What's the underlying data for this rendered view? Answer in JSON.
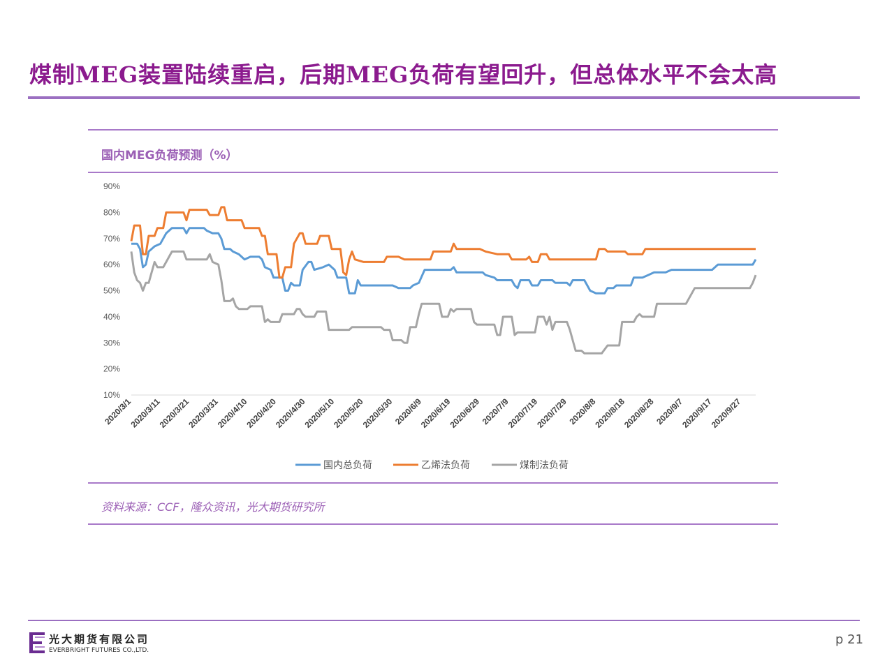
{
  "slide": {
    "title": "煤制MEG装置陆续重启，后期MEG负荷有望回升，但总体水平不会太高",
    "chart_title": "国内MEG负荷预测（%）",
    "source": "资料来源：CCF，隆众资讯，光大期货研究所",
    "page_number": "p 21",
    "logo_cn": "光大期货有限公司",
    "logo_en": "EVERBRIGHT FUTURES CO.,LTD."
  },
  "colors": {
    "title": "#8b1a8e",
    "rule": "#9b6fc1",
    "series_total": "#5b9bd5",
    "series_ethylene": "#ed7d31",
    "series_coal": "#a5a5a5"
  },
  "chart_data": {
    "type": "line",
    "y_tick_labels": [
      "10%",
      "20%",
      "30%",
      "40%",
      "50%",
      "60%",
      "70%",
      "80%",
      "90%"
    ],
    "ylim": [
      10,
      90
    ],
    "x_tick_labels": [
      "2020/3/1",
      "2020/3/11",
      "2020/3/21",
      "2020/3/31",
      "2020/4/10",
      "2020/4/20",
      "2020/4/30",
      "2020/5/10",
      "2020/5/20",
      "2020/5/30",
      "2020/6/9",
      "2020/6/19",
      "2020/6/29",
      "2020/7/9",
      "2020/7/19",
      "2020/7/29",
      "2020/8/8",
      "2020/8/18",
      "2020/8/28",
      "2020/9/7",
      "2020/9/17",
      "2020/9/27"
    ],
    "x_day_offsets": [
      0,
      10,
      20,
      30,
      40,
      50,
      60,
      70,
      80,
      90,
      100,
      110,
      120,
      130,
      140,
      150,
      160,
      170,
      180,
      190,
      200,
      210
    ],
    "x_range_days": [
      0,
      215
    ],
    "grid": false,
    "legend_position": "bottom",
    "series": [
      {
        "name": "国内总负荷",
        "color": "#5b9bd5",
        "points": [
          [
            0,
            68
          ],
          [
            2,
            68
          ],
          [
            3,
            66
          ],
          [
            4,
            59
          ],
          [
            5,
            60
          ],
          [
            6,
            65
          ],
          [
            8,
            67
          ],
          [
            10,
            68
          ],
          [
            12,
            72
          ],
          [
            14,
            74
          ],
          [
            18,
            74
          ],
          [
            19,
            72
          ],
          [
            20,
            74
          ],
          [
            25,
            74
          ],
          [
            26,
            73
          ],
          [
            28,
            72
          ],
          [
            30,
            72
          ],
          [
            31,
            70
          ],
          [
            32,
            66
          ],
          [
            34,
            66
          ],
          [
            35,
            65
          ],
          [
            37,
            64
          ],
          [
            39,
            62
          ],
          [
            41,
            63
          ],
          [
            44,
            63
          ],
          [
            45,
            62
          ],
          [
            46,
            59
          ],
          [
            48,
            58
          ],
          [
            49,
            55
          ],
          [
            52,
            55
          ],
          [
            53,
            50
          ],
          [
            54,
            50
          ],
          [
            55,
            53
          ],
          [
            56,
            52
          ],
          [
            58,
            52
          ],
          [
            59,
            58
          ],
          [
            61,
            61
          ],
          [
            62,
            61
          ],
          [
            63,
            58
          ],
          [
            66,
            59
          ],
          [
            68,
            60
          ],
          [
            70,
            58
          ],
          [
            71,
            55
          ],
          [
            74,
            55
          ],
          [
            75,
            49
          ],
          [
            77,
            49
          ],
          [
            78,
            54
          ],
          [
            79,
            52
          ],
          [
            84,
            52
          ],
          [
            90,
            52
          ],
          [
            92,
            51
          ],
          [
            96,
            51
          ],
          [
            97,
            52
          ],
          [
            99,
            53
          ],
          [
            101,
            58
          ],
          [
            110,
            58
          ],
          [
            111,
            59
          ],
          [
            112,
            57
          ],
          [
            116,
            57
          ],
          [
            121,
            57
          ],
          [
            122,
            56
          ],
          [
            125,
            55
          ],
          [
            126,
            54
          ],
          [
            131,
            54
          ],
          [
            132,
            52
          ],
          [
            133,
            51
          ],
          [
            134,
            54
          ],
          [
            137,
            54
          ],
          [
            138,
            52
          ],
          [
            140,
            52
          ],
          [
            141,
            54
          ],
          [
            145,
            54
          ],
          [
            146,
            53
          ],
          [
            150,
            53
          ],
          [
            151,
            52
          ],
          [
            152,
            54
          ],
          [
            156,
            54
          ],
          [
            158,
            50
          ],
          [
            160,
            49
          ],
          [
            163,
            49
          ],
          [
            164,
            51
          ],
          [
            166,
            51
          ],
          [
            167,
            52
          ],
          [
            172,
            52
          ],
          [
            173,
            55
          ],
          [
            176,
            55
          ],
          [
            178,
            56
          ],
          [
            180,
            57
          ],
          [
            184,
            57
          ],
          [
            186,
            58
          ],
          [
            200,
            58
          ],
          [
            202,
            60
          ],
          [
            214,
            60
          ],
          [
            215,
            62
          ]
        ]
      },
      {
        "name": "乙烯法负荷",
        "color": "#ed7d31",
        "points": [
          [
            0,
            69
          ],
          [
            1,
            75
          ],
          [
            3,
            75
          ],
          [
            4,
            64
          ],
          [
            5,
            64
          ],
          [
            6,
            71
          ],
          [
            8,
            71
          ],
          [
            9,
            74
          ],
          [
            11,
            74
          ],
          [
            12,
            80
          ],
          [
            18,
            80
          ],
          [
            19,
            77
          ],
          [
            20,
            81
          ],
          [
            26,
            81
          ],
          [
            27,
            79
          ],
          [
            30,
            79
          ],
          [
            31,
            82
          ],
          [
            32,
            82
          ],
          [
            33,
            77
          ],
          [
            38,
            77
          ],
          [
            39,
            74
          ],
          [
            44,
            74
          ],
          [
            45,
            71
          ],
          [
            46,
            71
          ],
          [
            47,
            64
          ],
          [
            50,
            64
          ],
          [
            51,
            55
          ],
          [
            52,
            55
          ],
          [
            53,
            59
          ],
          [
            54,
            59
          ],
          [
            55,
            59
          ],
          [
            56,
            68
          ],
          [
            58,
            72
          ],
          [
            59,
            72
          ],
          [
            60,
            68
          ],
          [
            64,
            68
          ],
          [
            65,
            71
          ],
          [
            68,
            71
          ],
          [
            69,
            66
          ],
          [
            72,
            66
          ],
          [
            73,
            57
          ],
          [
            74,
            56
          ],
          [
            75,
            62
          ],
          [
            76,
            65
          ],
          [
            77,
            62
          ],
          [
            80,
            61
          ],
          [
            87,
            61
          ],
          [
            88,
            63
          ],
          [
            92,
            63
          ],
          [
            94,
            62
          ],
          [
            103,
            62
          ],
          [
            104,
            65
          ],
          [
            110,
            65
          ],
          [
            111,
            68
          ],
          [
            112,
            66
          ],
          [
            120,
            66
          ],
          [
            122,
            65
          ],
          [
            126,
            64
          ],
          [
            130,
            64
          ],
          [
            131,
            62
          ],
          [
            136,
            62
          ],
          [
            137,
            63
          ],
          [
            138,
            61
          ],
          [
            140,
            61
          ],
          [
            141,
            64
          ],
          [
            143,
            64
          ],
          [
            144,
            62
          ],
          [
            145,
            62
          ],
          [
            160,
            62
          ],
          [
            161,
            66
          ],
          [
            163,
            66
          ],
          [
            164,
            65
          ],
          [
            170,
            65
          ],
          [
            171,
            64
          ],
          [
            176,
            64
          ],
          [
            177,
            66
          ],
          [
            215,
            66
          ]
        ]
      },
      {
        "name": "煤制法负荷",
        "color": "#a5a5a5",
        "points": [
          [
            0,
            65
          ],
          [
            1,
            57
          ],
          [
            2,
            54
          ],
          [
            3,
            53
          ],
          [
            4,
            50
          ],
          [
            5,
            53
          ],
          [
            6,
            53
          ],
          [
            8,
            61
          ],
          [
            9,
            59
          ],
          [
            11,
            59
          ],
          [
            12,
            61
          ],
          [
            14,
            65
          ],
          [
            18,
            65
          ],
          [
            19,
            62
          ],
          [
            26,
            62
          ],
          [
            27,
            64
          ],
          [
            28,
            61
          ],
          [
            30,
            60
          ],
          [
            31,
            54
          ],
          [
            32,
            46
          ],
          [
            34,
            46
          ],
          [
            35,
            47
          ],
          [
            36,
            44
          ],
          [
            37,
            43
          ],
          [
            40,
            43
          ],
          [
            41,
            44
          ],
          [
            45,
            44
          ],
          [
            46,
            38
          ],
          [
            47,
            39
          ],
          [
            48,
            38
          ],
          [
            51,
            38
          ],
          [
            52,
            41
          ],
          [
            56,
            41
          ],
          [
            57,
            43
          ],
          [
            58,
            43
          ],
          [
            59,
            41
          ],
          [
            60,
            40
          ],
          [
            63,
            40
          ],
          [
            64,
            42
          ],
          [
            67,
            42
          ],
          [
            68,
            35
          ],
          [
            75,
            35
          ],
          [
            76,
            36
          ],
          [
            86,
            36
          ],
          [
            87,
            35
          ],
          [
            89,
            35
          ],
          [
            90,
            31
          ],
          [
            93,
            31
          ],
          [
            94,
            30
          ],
          [
            95,
            30
          ],
          [
            96,
            36
          ],
          [
            98,
            36
          ],
          [
            99,
            41
          ],
          [
            100,
            45
          ],
          [
            106,
            45
          ],
          [
            107,
            40
          ],
          [
            109,
            40
          ],
          [
            110,
            43
          ],
          [
            111,
            42
          ],
          [
            112,
            43
          ],
          [
            117,
            43
          ],
          [
            118,
            38
          ],
          [
            119,
            37
          ],
          [
            125,
            37
          ],
          [
            126,
            33
          ],
          [
            127,
            33
          ],
          [
            128,
            40
          ],
          [
            131,
            40
          ],
          [
            132,
            33
          ],
          [
            133,
            34
          ],
          [
            139,
            34
          ],
          [
            140,
            40
          ],
          [
            142,
            40
          ],
          [
            143,
            37
          ],
          [
            144,
            40
          ],
          [
            145,
            35
          ],
          [
            146,
            38
          ],
          [
            150,
            38
          ],
          [
            151,
            35
          ],
          [
            152,
            31
          ],
          [
            153,
            27
          ],
          [
            155,
            27
          ],
          [
            156,
            26
          ],
          [
            162,
            26
          ],
          [
            164,
            29
          ],
          [
            168,
            29
          ],
          [
            169,
            38
          ],
          [
            173,
            38
          ],
          [
            174,
            40
          ],
          [
            175,
            41
          ],
          [
            176,
            40
          ],
          [
            180,
            40
          ],
          [
            181,
            45
          ],
          [
            191,
            45
          ],
          [
            192,
            47
          ],
          [
            194,
            51
          ],
          [
            213,
            51
          ],
          [
            214,
            53
          ],
          [
            215,
            56
          ]
        ]
      }
    ]
  }
}
